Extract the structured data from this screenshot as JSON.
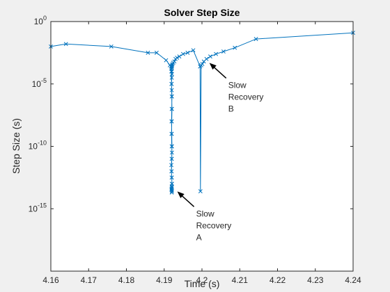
{
  "chart_data": {
    "type": "line",
    "title": "Solver Step Size",
    "xlabel": "Time (s)",
    "ylabel": "Step Size (s)",
    "xlim": [
      4.16,
      4.24
    ],
    "ylim_log10": [
      -20,
      0
    ],
    "y_scale": "log",
    "grid": false,
    "legend": "none",
    "marker": "x",
    "color": "#0072BD",
    "x_ticks": [
      "4.16",
      "4.17",
      "4.18",
      "4.19",
      "4.2",
      "4.21",
      "4.22",
      "4.23",
      "4.24"
    ],
    "y_ticks": [
      {
        "base": "10",
        "exp": "0"
      },
      {
        "base": "10",
        "exp": "-5"
      },
      {
        "base": "10",
        "exp": "-10"
      },
      {
        "base": "10",
        "exp": "-15"
      }
    ],
    "series": [
      {
        "x": [
          4.16,
          4.164,
          4.176,
          4.1857,
          4.188,
          4.1905,
          4.1915,
          4.1918,
          4.1919,
          4.19195,
          4.192,
          4.19205,
          4.192,
          4.19195,
          4.192,
          4.19205,
          4.192,
          4.1919,
          4.19195,
          4.192,
          4.19205,
          4.192,
          4.19195,
          4.192,
          4.19205,
          4.192,
          4.19195,
          4.192,
          4.19205,
          4.192,
          4.19195,
          4.192,
          4.19205,
          4.192,
          4.19195,
          4.192,
          4.19205,
          4.192,
          4.19195,
          4.192,
          4.19205,
          4.192,
          4.19195,
          4.192,
          4.19205,
          4.192,
          4.1921,
          4.1922,
          4.1924,
          4.1927,
          4.193,
          4.1934,
          4.194,
          4.195,
          4.1962,
          4.1977,
          4.1995,
          4.1996,
          4.1998,
          4.2001,
          4.2005,
          4.2012,
          4.2022,
          4.2037,
          4.2057,
          4.2087,
          4.2143,
          4.24
        ],
        "log10_y": [
          -2.0,
          -1.8,
          -2.0,
          -2.5,
          -2.5,
          -3.1,
          -3.5,
          -3.6,
          -4.0,
          -5.0,
          -6.0,
          -7.0,
          -8.0,
          -9.0,
          -10.0,
          -10.5,
          -11.0,
          -11.5,
          -12.0,
          -12.5,
          -13.0,
          -13.2,
          -13.4,
          -13.5,
          -13.6,
          -13.7,
          -13.5,
          -13.3,
          -13.0,
          -12.5,
          -12.0,
          -11.0,
          -10.0,
          -9.0,
          -8.0,
          -7.0,
          -6.0,
          -5.5,
          -5.0,
          -4.5,
          -4.2,
          -4.0,
          -3.8,
          -3.7,
          -3.6,
          -3.6,
          -3.5,
          -3.4,
          -3.3,
          -3.2,
          -3.0,
          -2.9,
          -2.8,
          -2.6,
          -2.5,
          -2.3,
          -3.6,
          -13.6,
          -3.5,
          -3.4,
          -3.2,
          -3.0,
          -2.8,
          -2.6,
          -2.4,
          -2.1,
          -1.4,
          -0.9
        ]
      }
    ],
    "annotations": [
      {
        "lines": [
          "Slow",
          "Recovery",
          "A"
        ],
        "x": 4.192,
        "log10_y": -13.5
      },
      {
        "lines": [
          "Slow",
          "Recovery",
          "B"
        ],
        "x": 4.2005,
        "log10_y": -3.2
      }
    ]
  }
}
